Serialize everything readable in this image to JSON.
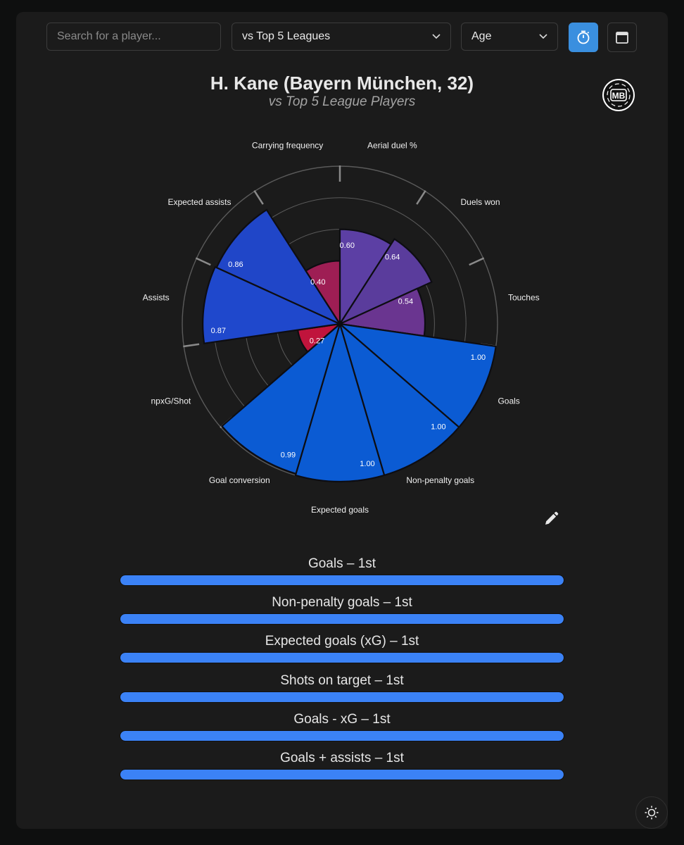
{
  "search": {
    "placeholder": "Search for a player..."
  },
  "filters": {
    "comparison": "vs Top 5 Leagues",
    "sort": "Age"
  },
  "header": {
    "title": "H. Kane (Bayern München, 32)",
    "subtitle": "vs Top 5 League Players",
    "logo_text": "MB"
  },
  "icons": {
    "timer_button": "stopwatch-icon",
    "calendar_button": "calendar-icon",
    "edit": "pencil-icon",
    "theme_toggle": "sun-icon"
  },
  "colors": {
    "accent": "#3a8fdf",
    "bar_fill": "#3b82f6",
    "attacking": "#0b5bd3",
    "creation": "#2046c6",
    "physical": "#5a3a9e",
    "weak": "#b3194a"
  },
  "chart_data": {
    "type": "polar-area",
    "rmax": 1.0,
    "grid": true,
    "categories": [
      {
        "label": "Aerial duel %",
        "value": 0.6,
        "value_label": "0.60",
        "color": "#5c3fa4"
      },
      {
        "label": "Duels won",
        "value": 0.64,
        "value_label": "0.64",
        "color": "#5a3c9c"
      },
      {
        "label": "Touches",
        "value": 0.54,
        "value_label": "0.54",
        "color": "#6a3590"
      },
      {
        "label": "Goals",
        "value": 1.0,
        "value_label": "1.00",
        "color": "#0b5bd3"
      },
      {
        "label": "Non-penalty goals",
        "value": 1.0,
        "value_label": "1.00",
        "color": "#0b5bd3"
      },
      {
        "label": "Expected goals",
        "value": 1.0,
        "value_label": "1.00",
        "color": "#0b5bd3"
      },
      {
        "label": "Goal conversion",
        "value": 0.99,
        "value_label": "0.99",
        "color": "#0b5bd3"
      },
      {
        "label": "npxG/Shot",
        "value": 0.27,
        "value_label": "0.27",
        "color": "#c0143c"
      },
      {
        "label": "Assists",
        "value": 0.87,
        "value_label": "0.87",
        "color": "#1f48cc"
      },
      {
        "label": "Expected assists",
        "value": 0.86,
        "value_label": "0.86",
        "color": "#2046c8"
      },
      {
        "label": "Carrying frequency",
        "value": 0.4,
        "value_label": "0.40",
        "color": "#9e1e54"
      }
    ]
  },
  "rankings": [
    {
      "label": "Goals – 1st",
      "value": 1.0
    },
    {
      "label": "Non-penalty goals – 1st",
      "value": 1.0
    },
    {
      "label": "Expected goals (xG) – 1st",
      "value": 1.0
    },
    {
      "label": "Shots on target – 1st",
      "value": 1.0
    },
    {
      "label": "Goals - xG – 1st",
      "value": 1.0
    },
    {
      "label": "Goals + assists – 1st",
      "value": 1.0
    }
  ]
}
